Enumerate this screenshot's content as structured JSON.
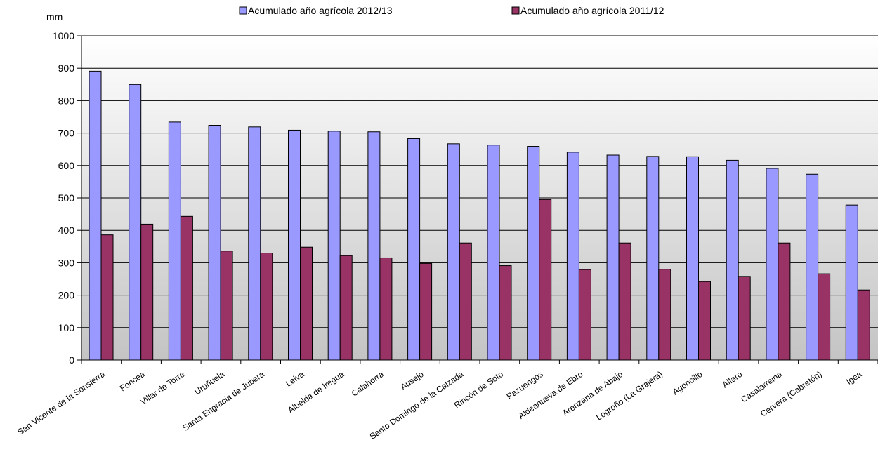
{
  "chart_data": {
    "type": "bar",
    "ylabel": "mm",
    "ylim": [
      0,
      1000
    ],
    "y_ticks": [
      0,
      100,
      200,
      300,
      400,
      500,
      600,
      700,
      800,
      900,
      1000
    ],
    "grid": true,
    "legend_position": "top",
    "categories": [
      "San Vicente de la Sonsierra",
      "Foncea",
      "Villar de Torre",
      "Uruñuela",
      "Santa Engracia de Jubera",
      "Leiva",
      "Albelda de Iregua",
      "Calahorra",
      "Ausejo",
      "Santo Domingo de la Calzada",
      "Rincón de Soto",
      "Pazuengos",
      "Aldeanueva de Ebro",
      "Arenzana de Abajo",
      "Logroño (La Grajera)",
      "Agoncillo",
      "Alfaro",
      "Casalarreina",
      "Cervera (Cabretón)",
      "Igea"
    ],
    "series": [
      {
        "name": "Acumulado año agrícola 2012/13",
        "color": "#9999ff",
        "values": [
          891,
          850,
          734,
          724,
          719,
          709,
          706,
          704,
          683,
          667,
          663,
          659,
          641,
          632,
          628,
          627,
          616,
          591,
          573,
          478
        ]
      },
      {
        "name": "Acumulado año agrícola 2011/12",
        "color": "#993366",
        "values": [
          386,
          419,
          443,
          336,
          330,
          348,
          322,
          315,
          298,
          361,
          291,
          495,
          279,
          361,
          280,
          242,
          258,
          361,
          266,
          216
        ]
      }
    ]
  }
}
